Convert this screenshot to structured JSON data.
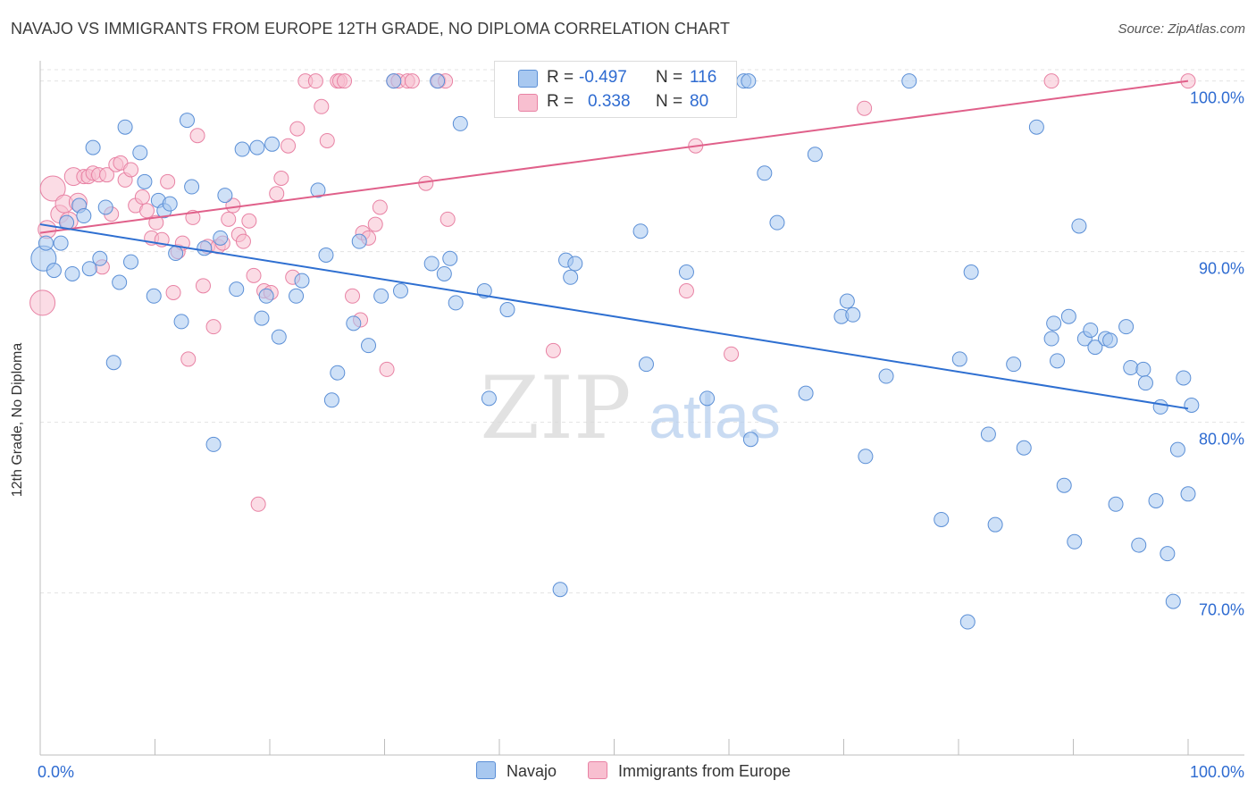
{
  "title": "NAVAJO VS IMMIGRANTS FROM EUROPE 12TH GRADE, NO DIPLOMA CORRELATION CHART",
  "source": "Source: ZipAtlas.com",
  "watermark": {
    "zip": "ZIP",
    "atlas": "atlas"
  },
  "legend": {
    "rows": [
      {
        "r_label": "R =",
        "r_value": "-0.497",
        "n_label": "N =",
        "n_value": "116",
        "color": "#a8c8f0",
        "border": "#5b8fd6"
      },
      {
        "r_label": "R =",
        "r_value": "0.338",
        "n_label": "N =",
        "n_value": "80",
        "color": "#f8bfd0",
        "border": "#e882a4"
      }
    ]
  },
  "bottom_legend": [
    "Navajo",
    "Immigrants from Europe"
  ],
  "colors": {
    "navajo_fill": "#a8c8f0",
    "navajo_stroke": "#5b8fd6",
    "navajo_line": "#2e6fd1",
    "europe_fill": "#f8bfd0",
    "europe_stroke": "#e882a4",
    "europe_line": "#e0608a",
    "tick_label": "#2e6bd1",
    "grid": "#e3e3e3"
  },
  "chart_data": {
    "type": "scatter",
    "title": "NAVAJO VS IMMIGRANTS FROM EUROPE 12TH GRADE, NO DIPLOMA CORRELATION CHART",
    "xlabel": "",
    "ylabel": "12th Grade, No Diploma",
    "xlim": [
      0,
      100
    ],
    "ylim": [
      60.5,
      101.5
    ],
    "x_tick_labels": [
      "0.0%",
      "100.0%"
    ],
    "y_ticks": [
      70,
      80,
      90,
      100
    ],
    "y_tick_labels": [
      "70.0%",
      "80.0%",
      "90.0%",
      "100.0%"
    ],
    "grid": true,
    "legend_position": "top-center",
    "series": [
      {
        "name": "Navajo",
        "trend": {
          "x": [
            0,
            100
          ],
          "y": [
            91.6,
            80.8
          ]
        },
        "points": [
          [
            0.3,
            89.6
          ],
          [
            0.5,
            90.5
          ],
          [
            1.2,
            88.9
          ],
          [
            1.8,
            90.5
          ],
          [
            2.3,
            91.7
          ],
          [
            2.8,
            88.7
          ],
          [
            3.4,
            92.7
          ],
          [
            3.8,
            92.1
          ],
          [
            4.3,
            89.0
          ],
          [
            4.6,
            96.1
          ],
          [
            5.2,
            89.6
          ],
          [
            5.7,
            92.6
          ],
          [
            6.4,
            83.5
          ],
          [
            6.9,
            88.2
          ],
          [
            7.4,
            97.3
          ],
          [
            7.9,
            89.4
          ],
          [
            8.7,
            95.8
          ],
          [
            9.1,
            94.1
          ],
          [
            9.9,
            87.4
          ],
          [
            10.3,
            93.0
          ],
          [
            10.8,
            92.4
          ],
          [
            11.3,
            92.8
          ],
          [
            11.8,
            89.9
          ],
          [
            12.3,
            85.9
          ],
          [
            12.8,
            97.7
          ],
          [
            13.2,
            93.8
          ],
          [
            14.3,
            90.2
          ],
          [
            15.1,
            78.7
          ],
          [
            15.7,
            90.8
          ],
          [
            16.1,
            93.3
          ],
          [
            17.1,
            87.8
          ],
          [
            17.6,
            96.0
          ],
          [
            18.9,
            96.1
          ],
          [
            19.3,
            86.1
          ],
          [
            19.7,
            87.4
          ],
          [
            20.2,
            96.3
          ],
          [
            20.8,
            85.0
          ],
          [
            22.3,
            87.4
          ],
          [
            22.8,
            88.3
          ],
          [
            24.2,
            93.6
          ],
          [
            24.9,
            89.8
          ],
          [
            25.4,
            81.3
          ],
          [
            25.9,
            82.9
          ],
          [
            27.3,
            85.8
          ],
          [
            27.8,
            90.6
          ],
          [
            28.6,
            84.5
          ],
          [
            29.7,
            87.4
          ],
          [
            30.8,
            100.0
          ],
          [
            31.4,
            87.7
          ],
          [
            34.1,
            89.3
          ],
          [
            34.6,
            100.0
          ],
          [
            35.2,
            88.7
          ],
          [
            35.7,
            89.6
          ],
          [
            36.2,
            87.0
          ],
          [
            36.6,
            97.5
          ],
          [
            38.7,
            87.7
          ],
          [
            39.1,
            81.4
          ],
          [
            40.7,
            86.6
          ],
          [
            43.1,
            100.0
          ],
          [
            45.3,
            70.2
          ],
          [
            45.8,
            89.5
          ],
          [
            46.2,
            88.5
          ],
          [
            46.6,
            89.3
          ],
          [
            49.9,
            100.0
          ],
          [
            52.3,
            91.2
          ],
          [
            52.8,
            83.4
          ],
          [
            56.3,
            88.8
          ],
          [
            58.1,
            81.4
          ],
          [
            61.3,
            100.0
          ],
          [
            61.7,
            100.0
          ],
          [
            61.9,
            79.0
          ],
          [
            63.1,
            94.6
          ],
          [
            64.2,
            91.7
          ],
          [
            66.7,
            81.7
          ],
          [
            67.5,
            95.7
          ],
          [
            69.8,
            86.2
          ],
          [
            70.3,
            87.1
          ],
          [
            70.8,
            86.3
          ],
          [
            71.9,
            78.0
          ],
          [
            73.7,
            82.7
          ],
          [
            75.7,
            100.0
          ],
          [
            78.5,
            74.3
          ],
          [
            80.1,
            83.7
          ],
          [
            80.8,
            68.3
          ],
          [
            81.1,
            88.8
          ],
          [
            82.6,
            79.3
          ],
          [
            83.2,
            74.0
          ],
          [
            84.8,
            83.4
          ],
          [
            85.7,
            78.5
          ],
          [
            86.8,
            97.3
          ],
          [
            88.1,
            84.9
          ],
          [
            88.3,
            85.8
          ],
          [
            88.6,
            83.6
          ],
          [
            89.2,
            76.3
          ],
          [
            89.6,
            86.2
          ],
          [
            90.1,
            73.0
          ],
          [
            90.5,
            91.5
          ],
          [
            91.0,
            84.9
          ],
          [
            91.5,
            85.4
          ],
          [
            91.9,
            84.4
          ],
          [
            92.8,
            84.9
          ],
          [
            93.2,
            84.8
          ],
          [
            93.7,
            75.2
          ],
          [
            94.6,
            85.6
          ],
          [
            95.0,
            83.2
          ],
          [
            95.7,
            72.8
          ],
          [
            96.1,
            83.1
          ],
          [
            96.3,
            82.3
          ],
          [
            97.2,
            75.4
          ],
          [
            97.6,
            80.9
          ],
          [
            98.2,
            72.3
          ],
          [
            98.7,
            69.5
          ],
          [
            99.1,
            78.4
          ],
          [
            99.6,
            82.6
          ],
          [
            100.0,
            75.8
          ],
          [
            100.3,
            81.0
          ]
        ]
      },
      {
        "name": "Immigrants from Europe",
        "trend": {
          "x": [
            0,
            100
          ],
          "y": [
            91.1,
            100.0
          ]
        },
        "points": [
          [
            0.2,
            87.0
          ],
          [
            0.6,
            91.3
          ],
          [
            1.1,
            93.7
          ],
          [
            1.7,
            92.2
          ],
          [
            2.1,
            92.8
          ],
          [
            2.5,
            91.8
          ],
          [
            2.9,
            94.4
          ],
          [
            3.3,
            92.9
          ],
          [
            3.8,
            94.4
          ],
          [
            4.2,
            94.4
          ],
          [
            4.6,
            94.6
          ],
          [
            5.1,
            94.5
          ],
          [
            5.4,
            89.1
          ],
          [
            5.8,
            94.5
          ],
          [
            6.2,
            92.2
          ],
          [
            6.6,
            95.1
          ],
          [
            7.0,
            95.2
          ],
          [
            7.4,
            94.2
          ],
          [
            7.9,
            94.8
          ],
          [
            8.3,
            92.7
          ],
          [
            8.9,
            93.2
          ],
          [
            9.3,
            92.4
          ],
          [
            9.7,
            90.8
          ],
          [
            10.1,
            91.7
          ],
          [
            10.6,
            90.7
          ],
          [
            11.1,
            94.1
          ],
          [
            11.6,
            87.6
          ],
          [
            12.0,
            90.0
          ],
          [
            12.4,
            90.5
          ],
          [
            12.9,
            83.7
          ],
          [
            13.3,
            92.0
          ],
          [
            13.7,
            96.8
          ],
          [
            14.2,
            88.0
          ],
          [
            14.6,
            90.3
          ],
          [
            15.1,
            85.6
          ],
          [
            15.5,
            90.3
          ],
          [
            15.9,
            90.5
          ],
          [
            16.4,
            91.9
          ],
          [
            16.8,
            92.7
          ],
          [
            17.3,
            91.0
          ],
          [
            17.7,
            90.6
          ],
          [
            18.2,
            91.8
          ],
          [
            18.6,
            88.6
          ],
          [
            19.0,
            75.2
          ],
          [
            19.5,
            87.7
          ],
          [
            20.1,
            87.6
          ],
          [
            20.6,
            93.4
          ],
          [
            21.0,
            94.3
          ],
          [
            21.6,
            96.2
          ],
          [
            22.0,
            88.5
          ],
          [
            22.4,
            97.2
          ],
          [
            23.1,
            100.0
          ],
          [
            24.0,
            100.0
          ],
          [
            24.5,
            98.5
          ],
          [
            25.0,
            96.5
          ],
          [
            25.9,
            100.0
          ],
          [
            26.1,
            100.0
          ],
          [
            26.5,
            100.0
          ],
          [
            27.2,
            87.4
          ],
          [
            27.9,
            86.0
          ],
          [
            28.1,
            91.1
          ],
          [
            28.6,
            90.8
          ],
          [
            29.2,
            91.6
          ],
          [
            29.6,
            92.6
          ],
          [
            30.2,
            83.1
          ],
          [
            30.8,
            100.0
          ],
          [
            31.2,
            100.0
          ],
          [
            32.0,
            100.0
          ],
          [
            32.4,
            100.0
          ],
          [
            33.6,
            94.0
          ],
          [
            34.7,
            100.0
          ],
          [
            35.3,
            100.0
          ],
          [
            35.5,
            91.9
          ],
          [
            44.7,
            84.2
          ],
          [
            56.3,
            87.7
          ],
          [
            57.1,
            96.2
          ],
          [
            60.2,
            84.0
          ],
          [
            71.8,
            98.4
          ],
          [
            88.1,
            100.0
          ],
          [
            100.0,
            100.0
          ]
        ]
      }
    ]
  }
}
